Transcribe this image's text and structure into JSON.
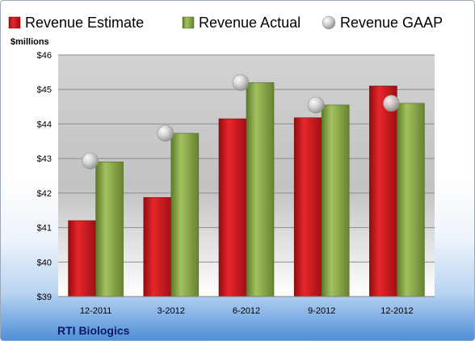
{
  "chart_data": {
    "type": "bar",
    "company": "RTI Biologics",
    "ylabel": "$millions",
    "categories": [
      "12-2011",
      "3-2012",
      "6-2012",
      "9-2012",
      "12-2012"
    ],
    "ylim": [
      39,
      46
    ],
    "yticks": [
      "$39",
      "$40",
      "$41",
      "$42",
      "$43",
      "$44",
      "$45",
      "$46"
    ],
    "grid": true,
    "legend_position": "top",
    "series": [
      {
        "name": "Revenue Estimate",
        "kind": "bar",
        "color": "#c8151b",
        "values": [
          41.2,
          41.87,
          44.15,
          44.18,
          45.1
        ]
      },
      {
        "name": "Revenue Actual",
        "kind": "bar",
        "color": "#86a34a",
        "values": [
          42.9,
          43.73,
          45.2,
          44.55,
          44.6
        ]
      },
      {
        "name": "Revenue GAAP",
        "kind": "marker",
        "color": "#b8b8b8",
        "values": [
          42.93,
          43.73,
          45.2,
          44.55,
          44.6
        ]
      }
    ]
  }
}
